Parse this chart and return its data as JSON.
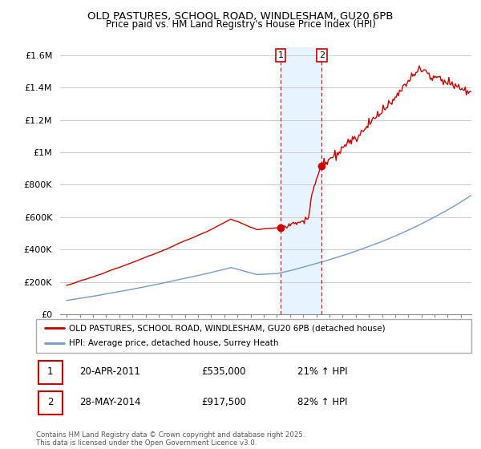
{
  "title_line1": "OLD PASTURES, SCHOOL ROAD, WINDLESHAM, GU20 6PB",
  "title_line2": "Price paid vs. HM Land Registry's House Price Index (HPI)",
  "ylabel_ticks": [
    "£0",
    "£200K",
    "£400K",
    "£600K",
    "£800K",
    "£1M",
    "£1.2M",
    "£1.4M",
    "£1.6M"
  ],
  "ytick_values": [
    0,
    200000,
    400000,
    600000,
    800000,
    1000000,
    1200000,
    1400000,
    1600000
  ],
  "ylim": [
    0,
    1650000
  ],
  "xlim_start": 1994.5,
  "xlim_end": 2025.8,
  "sale1": {
    "date": "20-APR-2011",
    "price": 535000,
    "hpi_pct": "21% ↑ HPI",
    "year": 2011.29,
    "label": "1"
  },
  "sale2": {
    "date": "28-MAY-2014",
    "price": 917500,
    "hpi_pct": "82% ↑ HPI",
    "label": "2",
    "year": 2014.41
  },
  "legend_property": "OLD PASTURES, SCHOOL ROAD, WINDLESHAM, GU20 6PB (detached house)",
  "legend_hpi": "HPI: Average price, detached house, Surrey Heath",
  "footer": "Contains HM Land Registry data © Crown copyright and database right 2025.\nThis data is licensed under the Open Government Licence v3.0.",
  "property_color": "#cc0000",
  "hpi_color": "#7799cc",
  "background_color": "#ffffff",
  "grid_color": "#cccccc",
  "shade_color": "#ddeeff",
  "vline_color": "#cc0000"
}
